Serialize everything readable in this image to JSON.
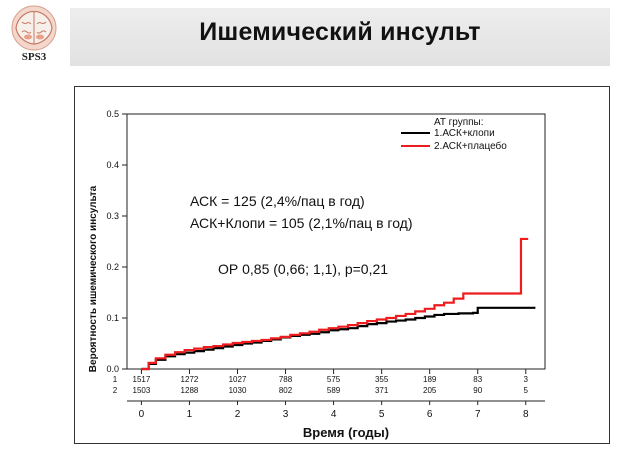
{
  "header": {
    "title": "Ишемический инсульт",
    "logo_label": "SPS3"
  },
  "chart_data": {
    "type": "line",
    "title": "",
    "xlabel": "Время (годы)",
    "ylabel": "Вероятность ишемического инсульта",
    "xlim": [
      -0.3,
      8.4
    ],
    "ylim": [
      0,
      0.5
    ],
    "x_ticks": [
      0,
      1,
      2,
      3,
      4,
      5,
      6,
      7,
      8
    ],
    "y_ticks": [
      "0.0",
      "0.1",
      "0.2",
      "0.3",
      "0.4",
      "0.5"
    ],
    "legend": {
      "title": "AT группы:",
      "placement": "top-right"
    },
    "series": [
      {
        "name": "1.АСК+клопи",
        "color": "#000000",
        "points": [
          [
            0,
            0
          ],
          [
            0.15,
            0.01
          ],
          [
            0.3,
            0.018
          ],
          [
            0.5,
            0.025
          ],
          [
            0.7,
            0.029
          ],
          [
            0.9,
            0.032
          ],
          [
            1.1,
            0.035
          ],
          [
            1.3,
            0.038
          ],
          [
            1.5,
            0.041
          ],
          [
            1.7,
            0.044
          ],
          [
            1.9,
            0.047
          ],
          [
            2.1,
            0.05
          ],
          [
            2.3,
            0.052
          ],
          [
            2.5,
            0.055
          ],
          [
            2.7,
            0.058
          ],
          [
            2.9,
            0.062
          ],
          [
            3.1,
            0.065
          ],
          [
            3.3,
            0.067
          ],
          [
            3.5,
            0.069
          ],
          [
            3.7,
            0.072
          ],
          [
            3.9,
            0.076
          ],
          [
            4.1,
            0.078
          ],
          [
            4.3,
            0.08
          ],
          [
            4.5,
            0.084
          ],
          [
            4.7,
            0.088
          ],
          [
            4.9,
            0.09
          ],
          [
            5.1,
            0.093
          ],
          [
            5.3,
            0.095
          ],
          [
            5.5,
            0.097
          ],
          [
            5.7,
            0.1
          ],
          [
            5.9,
            0.103
          ],
          [
            6.1,
            0.106
          ],
          [
            6.3,
            0.108
          ],
          [
            6.6,
            0.109
          ],
          [
            6.9,
            0.11
          ],
          [
            7.0,
            0.12
          ],
          [
            7.5,
            0.12
          ],
          [
            8.2,
            0.12
          ]
        ]
      },
      {
        "name": "2.АСК+плацебо",
        "color": "#ee1c1c",
        "points": [
          [
            0,
            0
          ],
          [
            0.15,
            0.012
          ],
          [
            0.3,
            0.021
          ],
          [
            0.5,
            0.028
          ],
          [
            0.7,
            0.033
          ],
          [
            0.9,
            0.037
          ],
          [
            1.1,
            0.04
          ],
          [
            1.3,
            0.043
          ],
          [
            1.5,
            0.045
          ],
          [
            1.7,
            0.048
          ],
          [
            1.9,
            0.051
          ],
          [
            2.1,
            0.053
          ],
          [
            2.3,
            0.055
          ],
          [
            2.5,
            0.057
          ],
          [
            2.7,
            0.06
          ],
          [
            2.9,
            0.063
          ],
          [
            3.1,
            0.067
          ],
          [
            3.3,
            0.07
          ],
          [
            3.5,
            0.073
          ],
          [
            3.7,
            0.077
          ],
          [
            3.9,
            0.08
          ],
          [
            4.1,
            0.083
          ],
          [
            4.3,
            0.086
          ],
          [
            4.5,
            0.09
          ],
          [
            4.7,
            0.094
          ],
          [
            4.9,
            0.097
          ],
          [
            5.1,
            0.1
          ],
          [
            5.3,
            0.104
          ],
          [
            5.5,
            0.108
          ],
          [
            5.7,
            0.113
          ],
          [
            5.9,
            0.118
          ],
          [
            6.1,
            0.125
          ],
          [
            6.3,
            0.13
          ],
          [
            6.5,
            0.138
          ],
          [
            6.7,
            0.148
          ],
          [
            7.0,
            0.148
          ],
          [
            7.5,
            0.148
          ],
          [
            7.9,
            0.148
          ],
          [
            7.9,
            0.255
          ],
          [
            8.05,
            0.255
          ]
        ]
      }
    ],
    "risk_table": {
      "rows": [
        {
          "label": "1",
          "values": [
            "1517",
            "1272",
            "1027",
            "788",
            "575",
            "355",
            "189",
            "83",
            "3"
          ]
        },
        {
          "label": "2",
          "values": [
            "1503",
            "1288",
            "1030",
            "802",
            "589",
            "371",
            "205",
            "90",
            "5"
          ]
        }
      ]
    },
    "annotations": [
      "АСК = 125 (2,4%/пац в год)",
      "АСК+Клопи = 105 (2,1%/пац в год)",
      "ОР 0,85 (0,66; 1,1), p=0,21"
    ]
  }
}
